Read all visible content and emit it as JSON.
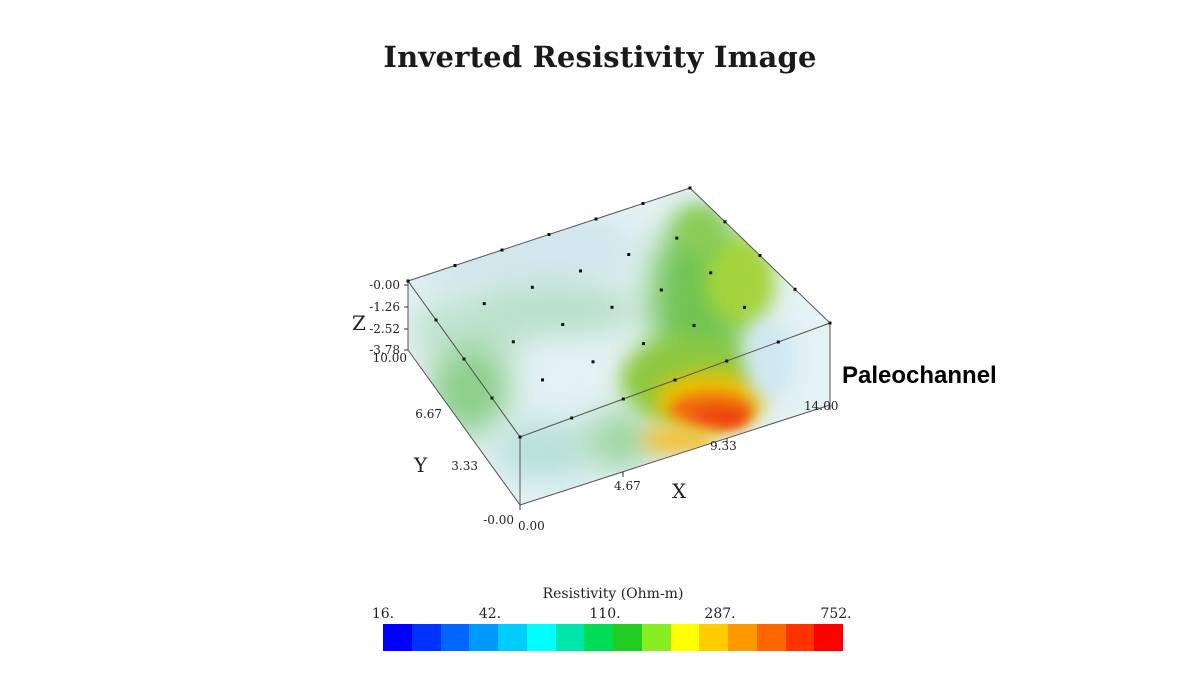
{
  "title": "Inverted Resistivity Image",
  "annotation": "Paleochannel",
  "axes": {
    "x": {
      "label": "X",
      "ticks": [
        "0.00",
        "4.67",
        "9.33",
        "14.00"
      ]
    },
    "y": {
      "label": "Y",
      "ticks": [
        "-0.00",
        "3.33",
        "6.67",
        "10.00"
      ]
    },
    "z": {
      "label": "Z",
      "ticks": [
        "-0.00",
        "-1.26",
        "-2.52",
        "-3.78"
      ]
    }
  },
  "colorbar": {
    "label": "Resistivity (Ohm-m)",
    "ticks": [
      "16.",
      "42.",
      "110.",
      "287.",
      "752."
    ],
    "colors": [
      "#0000ff",
      "#0033ff",
      "#0066ff",
      "#0099ff",
      "#00ccff",
      "#00ffff",
      "#00e6aa",
      "#00dd55",
      "#22cc22",
      "#88ee22",
      "#ffff00",
      "#ffcc00",
      "#ff9900",
      "#ff6600",
      "#ff3300",
      "#ff0000"
    ]
  },
  "colors": {
    "low": "#cfe8f2",
    "mid": "#66c46a",
    "high": "#f03a0a"
  }
}
